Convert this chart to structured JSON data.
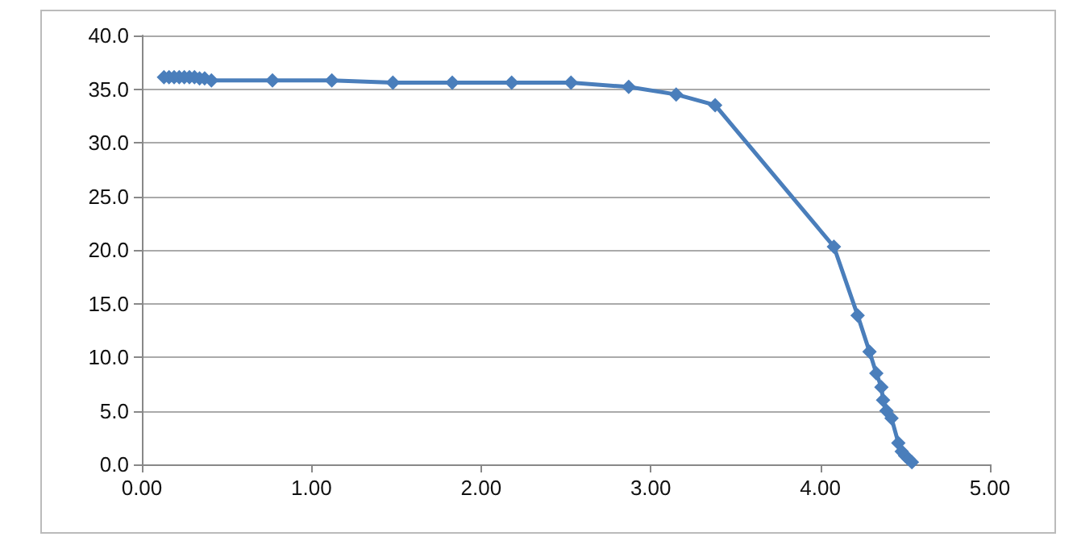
{
  "chart_data": {
    "type": "line",
    "x": [
      0.13,
      0.16,
      0.19,
      0.22,
      0.25,
      0.28,
      0.31,
      0.34,
      0.37,
      0.41,
      0.77,
      1.12,
      1.48,
      1.83,
      2.18,
      2.53,
      2.87,
      3.15,
      3.38,
      4.08,
      4.22,
      4.29,
      4.33,
      4.36,
      4.37,
      4.39,
      4.42,
      4.46,
      4.48,
      4.5,
      4.52,
      4.54
    ],
    "series": [
      {
        "color": "#4a7ebb",
        "values": [
          36.1,
          36.1,
          36.1,
          36.1,
          36.1,
          36.1,
          36.1,
          36.0,
          36.0,
          35.8,
          35.8,
          35.8,
          35.6,
          35.6,
          35.6,
          35.6,
          35.2,
          34.5,
          33.5,
          20.3,
          13.9,
          10.5,
          8.5,
          7.2,
          6.0,
          5.0,
          4.3,
          2.0,
          1.2,
          0.8,
          0.5,
          0.2
        ]
      }
    ],
    "xlim": [
      0,
      5
    ],
    "xticks": [
      {
        "value": 0,
        "label": "0.00"
      },
      {
        "value": 1,
        "label": "1.00"
      },
      {
        "value": 2,
        "label": "2.00"
      },
      {
        "value": 3,
        "label": "3.00"
      },
      {
        "value": 4,
        "label": "4.00"
      },
      {
        "value": 5,
        "label": "5.00"
      }
    ],
    "ylim": [
      0,
      40
    ],
    "yticks": [
      {
        "value": 0,
        "label": "0.0"
      },
      {
        "value": 5,
        "label": "5.0"
      },
      {
        "value": 10,
        "label": "10.0"
      },
      {
        "value": 15,
        "label": "15.0"
      },
      {
        "value": 20,
        "label": "20.0"
      },
      {
        "value": 25,
        "label": "25.0"
      },
      {
        "value": 30,
        "label": "30.0"
      },
      {
        "value": 35,
        "label": "35.0"
      },
      {
        "value": 40,
        "label": "40.0"
      }
    ],
    "grid": "y",
    "marker": "diamond",
    "line_style": "solid"
  }
}
